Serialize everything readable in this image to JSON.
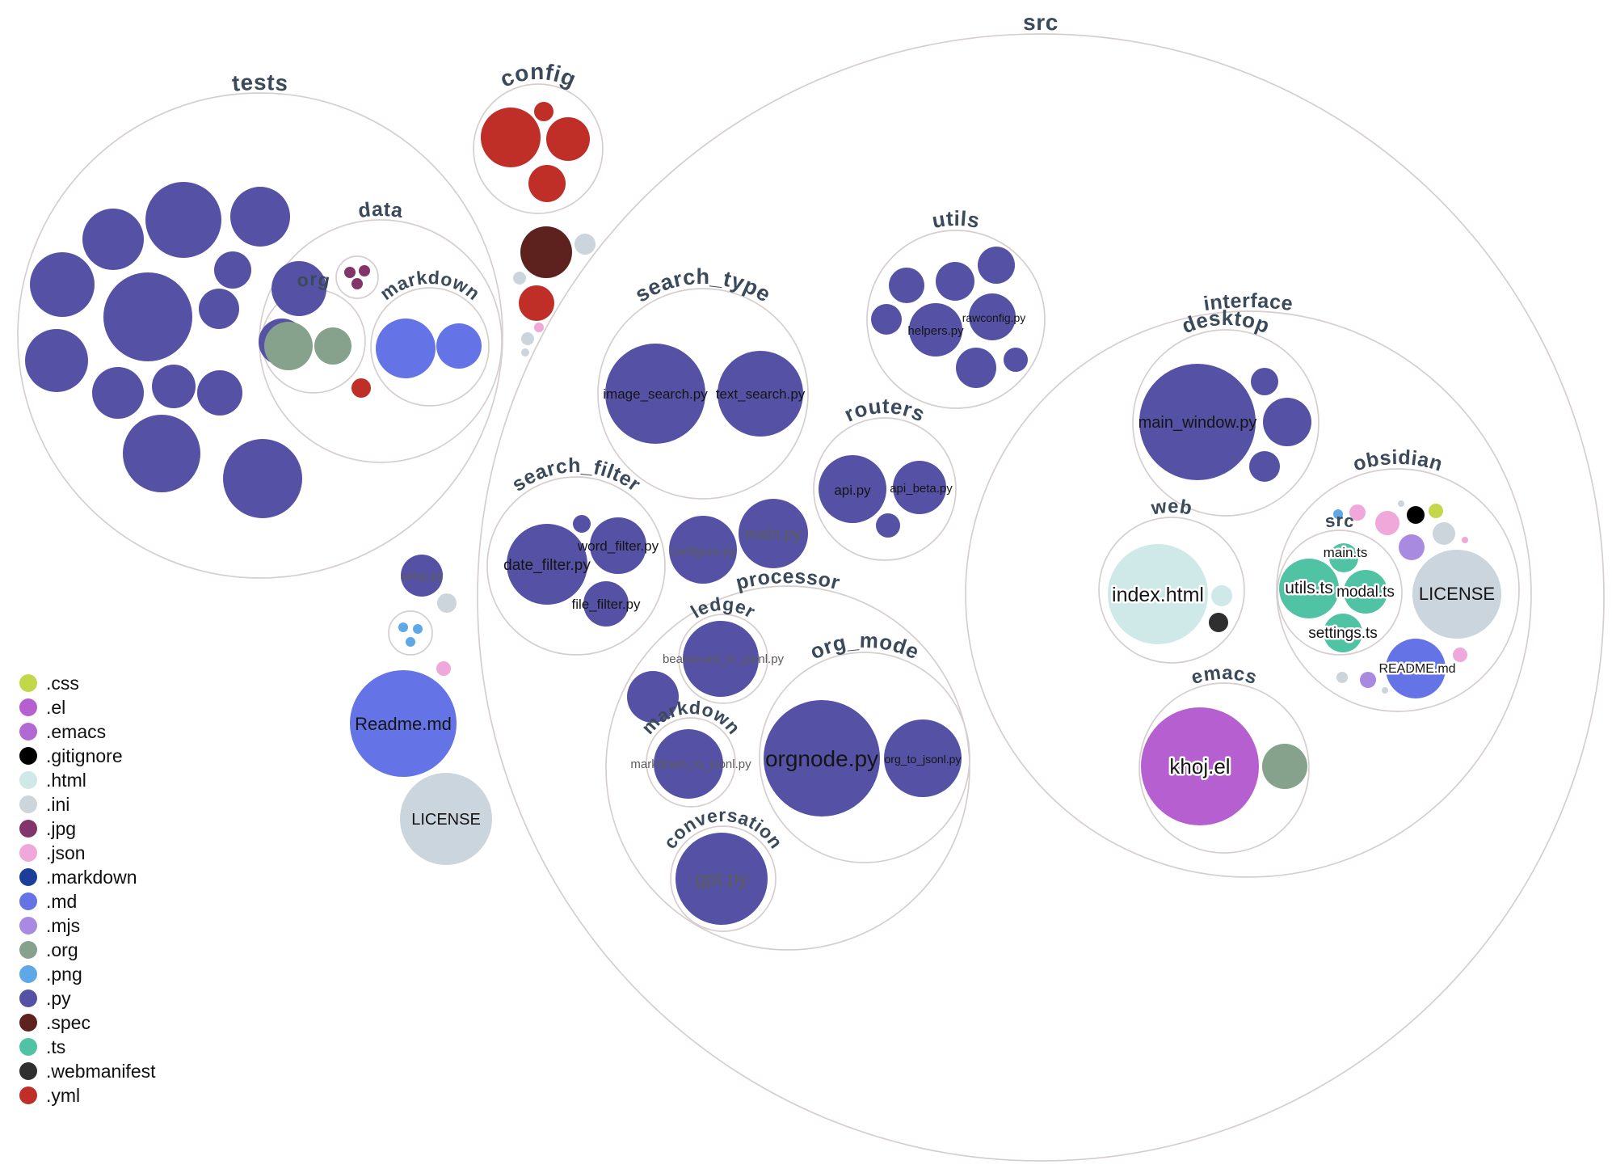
{
  "legend": {
    "items": [
      {
        "ext": ".css",
        "color": "#c2d84a"
      },
      {
        "ext": ".el",
        "color": "#b55fd0"
      },
      {
        "ext": ".emacs",
        "color": "#b269d3"
      },
      {
        "ext": ".gitignore",
        "color": "#000000"
      },
      {
        "ext": ".html",
        "color": "#cfe8e8"
      },
      {
        "ext": ".ini",
        "color": "#ccd5dc"
      },
      {
        "ext": ".jpg",
        "color": "#82356b"
      },
      {
        "ext": ".json",
        "color": "#f0a8da"
      },
      {
        "ext": ".markdown",
        "color": "#1c3e9b"
      },
      {
        "ext": ".md",
        "color": "#6474e6"
      },
      {
        "ext": ".mjs",
        "color": "#a88be0"
      },
      {
        "ext": ".org",
        "color": "#87a28c"
      },
      {
        "ext": ".png",
        "color": "#5ea8e8"
      },
      {
        "ext": ".py",
        "color": "#5552a5"
      },
      {
        "ext": ".spec",
        "color": "#5e221e"
      },
      {
        "ext": ".ts",
        "color": "#50c3a5"
      },
      {
        "ext": ".webmanifest",
        "color": "#2f2f2f"
      },
      {
        "ext": ".yml",
        "color": "#c02e28"
      }
    ]
  },
  "colors": {
    "folder_stroke": "#d6cece",
    "folder_label": "#3b4a5b",
    "file_label": "#151515",
    "file_label_muted": "#5c5c5c",
    "no_extension_file": "#cbd5dd"
  },
  "tree": {
    "tests": {
      "label": "tests",
      "children": {
        "data": {
          "label": "data",
          "children": {
            "org": {
              "label": "org"
            },
            "markdown": {
              "label": "markdown"
            }
          }
        }
      }
    },
    "config": {
      "label": "config"
    },
    "src": {
      "label": "src",
      "files": {
        "configure": "configure.py",
        "main": "main.py"
      },
      "children": {
        "search_type": {
          "label": "search_type",
          "files": {
            "image_search": "image_search.py",
            "text_search": "text_search.py"
          }
        },
        "search_filter": {
          "label": "search_filter",
          "files": {
            "date_filter": "date_filter.py",
            "word_filter": "word_filter.py",
            "file_filter": "file_filter.py"
          }
        },
        "utils": {
          "label": "utils",
          "files": {
            "helpers": "helpers.py",
            "rawconfig": "rawconfig.py"
          }
        },
        "routers": {
          "label": "routers",
          "files": {
            "api": "api.py",
            "api_beta": "api_beta.py"
          }
        },
        "processor": {
          "label": "processor",
          "children": {
            "ledger": {
              "label": "ledger",
              "files": {
                "beancount_to_jsonl": "beancount_to_jsonl.py"
              }
            },
            "markdown": {
              "label": "markdown",
              "files": {
                "markdown_to_jsonl": "markdown_to_jsonl.py"
              }
            },
            "org_mode": {
              "label": "org_mode",
              "files": {
                "orgnode": "orgnode.py",
                "org_to_jsonl": "org_to_jsonl.py"
              }
            },
            "conversation": {
              "label": "conversation",
              "files": {
                "gpt": "gpt.py"
              }
            }
          }
        },
        "interface": {
          "label": "interface",
          "children": {
            "desktop": {
              "label": "desktop",
              "files": {
                "main_window": "main_window.py"
              }
            },
            "web": {
              "label": "web",
              "files": {
                "index_html": "index.html"
              }
            },
            "obsidian": {
              "label": "obsidian",
              "files": {
                "license": "LICENSE",
                "readme": "README.md"
              },
              "children": {
                "src": {
                  "label": "src",
                  "files": {
                    "main_ts": "main.ts",
                    "utils_ts": "utils.ts",
                    "modal_ts": "modal.ts",
                    "settings_ts": "settings.ts"
                  }
                }
              }
            },
            "emacs": {
              "label": "emacs",
              "files": {
                "khoj_el": "khoj.el"
              }
            }
          }
        }
      }
    },
    "root_files": {
      "setup": "setup.py",
      "readme": "Readme.md",
      "license": "LICENSE"
    }
  }
}
